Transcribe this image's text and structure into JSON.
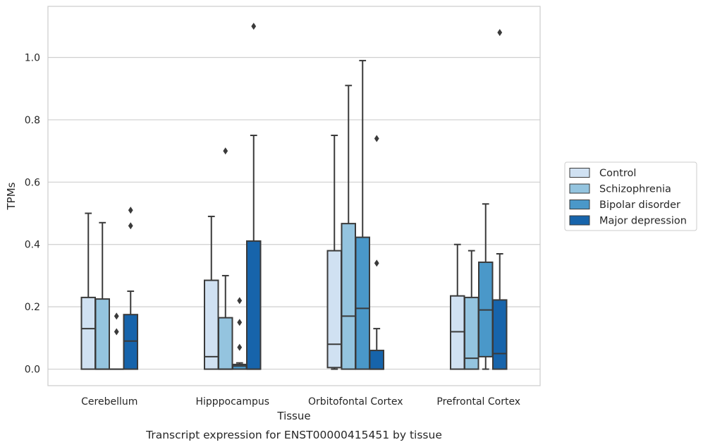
{
  "chart_data": {
    "type": "box",
    "xlabel": "Tissue",
    "ylabel": "TPMs",
    "caption": "Transcript expression for ENST00000415451 by tissue",
    "ylim": [
      -0.053,
      1.164
    ],
    "yticks": [
      0.0,
      0.2,
      0.4,
      0.6,
      0.8,
      1.0
    ],
    "ytick_labels": [
      "0.0",
      "0.2",
      "0.4",
      "0.6",
      "0.8",
      "1.0"
    ],
    "grid": true,
    "legend_position": "right",
    "categories": [
      "Cerebellum",
      "Hipppocampus",
      "Orbitofontal Cortex",
      "Prefrontal Cortex"
    ],
    "series": [
      {
        "name": "Control",
        "color": "#d0e1f2",
        "boxes": [
          {
            "min": 0.0,
            "q1": 0.0,
            "median": 0.13,
            "q3": 0.23,
            "max": 0.5,
            "outliers": []
          },
          {
            "min": 0.0,
            "q1": 0.0,
            "median": 0.04,
            "q3": 0.285,
            "max": 0.49,
            "outliers": []
          },
          {
            "min": 0.0,
            "q1": 0.005,
            "median": 0.08,
            "q3": 0.38,
            "max": 0.75,
            "outliers": []
          },
          {
            "min": 0.0,
            "q1": 0.0,
            "median": 0.12,
            "q3": 0.235,
            "max": 0.4,
            "outliers": []
          }
        ]
      },
      {
        "name": "Schizophrenia",
        "color": "#94c4df",
        "boxes": [
          {
            "min": 0.0,
            "q1": 0.0,
            "median": 0.0,
            "q3": 0.225,
            "max": 0.47,
            "outliers": []
          },
          {
            "min": 0.0,
            "q1": 0.0,
            "median": 0.0,
            "q3": 0.165,
            "max": 0.3,
            "outliers": [
              0.7
            ]
          },
          {
            "min": 0.0,
            "q1": 0.0,
            "median": 0.17,
            "q3": 0.467,
            "max": 0.91,
            "outliers": []
          },
          {
            "min": 0.0,
            "q1": 0.0,
            "median": 0.035,
            "q3": 0.23,
            "max": 0.38,
            "outliers": []
          }
        ]
      },
      {
        "name": "Bipolar disorder",
        "color": "#4a98c9",
        "boxes": [
          {
            "min": 0.0,
            "q1": 0.0,
            "median": 0.0,
            "q3": 0.0,
            "max": 0.0,
            "outliers": [
              0.17,
              0.12
            ]
          },
          {
            "min": 0.0,
            "q1": 0.0,
            "median": 0.01,
            "q3": 0.015,
            "max": 0.02,
            "outliers": [
              0.22,
              0.15,
              0.07
            ]
          },
          {
            "min": 0.0,
            "q1": 0.0,
            "median": 0.195,
            "q3": 0.423,
            "max": 0.99,
            "outliers": []
          },
          {
            "min": 0.0,
            "q1": 0.04,
            "median": 0.19,
            "q3": 0.343,
            "max": 0.53,
            "outliers": []
          }
        ]
      },
      {
        "name": "Major depression",
        "color": "#1764ab",
        "boxes": [
          {
            "min": 0.0,
            "q1": 0.0,
            "median": 0.09,
            "q3": 0.175,
            "max": 0.25,
            "outliers": [
              0.51,
              0.46
            ]
          },
          {
            "min": 0.0,
            "q1": 0.0,
            "median": 0.0,
            "q3": 0.411,
            "max": 0.75,
            "outliers": [
              1.1
            ]
          },
          {
            "min": 0.0,
            "q1": 0.0,
            "median": 0.0,
            "q3": 0.06,
            "max": 0.13,
            "outliers": [
              0.74,
              0.34
            ]
          },
          {
            "min": 0.0,
            "q1": 0.0,
            "median": 0.05,
            "q3": 0.222,
            "max": 0.37,
            "outliers": [
              1.08
            ]
          }
        ]
      }
    ]
  }
}
